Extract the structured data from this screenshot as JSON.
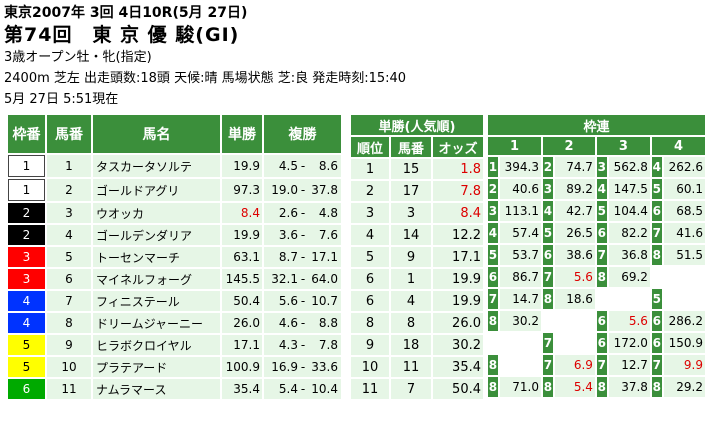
{
  "race_date_line": "東京2007年 3回 4日10R(5月 27日)",
  "race_title": "第74回　東 京 優 駿(GI)",
  "race_condition": "3歳オープン牡・牝(指定)",
  "race_info": "2400m 芝左 出走頭数:18頭 天候:晴 馬場状態 芝:良 発走時刻:15:40",
  "updated_at": "5月 27日 5:51現在",
  "odds_table": {
    "headers": {
      "waku": "枠番",
      "umaban": "馬番",
      "name": "馬名",
      "win": "単勝",
      "place": "複勝"
    },
    "place_sep": "-",
    "rows": [
      {
        "waku": "1",
        "umaban": "1",
        "name": "タスカータソルテ",
        "win": "19.9",
        "place_lo": "4.5",
        "place_hi": "8.6"
      },
      {
        "waku": "1",
        "umaban": "2",
        "name": "ゴールドアグリ",
        "win": "97.3",
        "place_lo": "19.0",
        "place_hi": "37.8"
      },
      {
        "waku": "2",
        "umaban": "3",
        "name": "ウオッカ",
        "win": "8.4",
        "place_lo": "2.6",
        "place_hi": "4.8"
      },
      {
        "waku": "2",
        "umaban": "4",
        "name": "ゴールデンダリア",
        "win": "19.9",
        "place_lo": "3.6",
        "place_hi": "7.6"
      },
      {
        "waku": "3",
        "umaban": "5",
        "name": "トーセンマーチ",
        "win": "63.1",
        "place_lo": "8.7",
        "place_hi": "17.1"
      },
      {
        "waku": "3",
        "umaban": "6",
        "name": "マイネルフォーグ",
        "win": "145.5",
        "place_lo": "32.1",
        "place_hi": "64.0"
      },
      {
        "waku": "4",
        "umaban": "7",
        "name": "フィニステール",
        "win": "50.4",
        "place_lo": "5.6",
        "place_hi": "10.7"
      },
      {
        "waku": "4",
        "umaban": "8",
        "name": "ドリームジャーニー",
        "win": "26.0",
        "place_lo": "4.6",
        "place_hi": "8.8"
      },
      {
        "waku": "5",
        "umaban": "9",
        "name": "ヒラボクロイヤル",
        "win": "17.1",
        "place_lo": "4.3",
        "place_hi": "7.8"
      },
      {
        "waku": "5",
        "umaban": "10",
        "name": "プラテアード",
        "win": "100.9",
        "place_lo": "16.9",
        "place_hi": "33.6"
      },
      {
        "waku": "6",
        "umaban": "11",
        "name": "ナムラマース",
        "win": "35.4",
        "place_lo": "5.4",
        "place_hi": "10.4"
      }
    ]
  },
  "popularity_table": {
    "title": "単勝(人気順)",
    "headers": {
      "rank": "順位",
      "umaban": "馬番",
      "odds": "オッズ"
    },
    "rows": [
      {
        "rank": "1",
        "umaban": "15",
        "odds": "1.8"
      },
      {
        "rank": "2",
        "umaban": "17",
        "odds": "7.8"
      },
      {
        "rank": "3",
        "umaban": "3",
        "odds": "8.4"
      },
      {
        "rank": "4",
        "umaban": "14",
        "odds": "12.2"
      },
      {
        "rank": "5",
        "umaban": "9",
        "odds": "17.1"
      },
      {
        "rank": "6",
        "umaban": "1",
        "odds": "19.9"
      },
      {
        "rank": "6",
        "umaban": "4",
        "odds": "19.9"
      },
      {
        "rank": "8",
        "umaban": "8",
        "odds": "26.0"
      },
      {
        "rank": "9",
        "umaban": "18",
        "odds": "30.2"
      },
      {
        "rank": "10",
        "umaban": "11",
        "odds": "35.4"
      },
      {
        "rank": "11",
        "umaban": "7",
        "odds": "50.4"
      }
    ]
  },
  "wakuren_table": {
    "title": "枠連",
    "headers": [
      "1",
      "2",
      "3",
      "4"
    ],
    "rows": [
      [
        "1",
        "394.3",
        "2",
        "74.7",
        "3",
        "562.8",
        "4",
        "262.6"
      ],
      [
        "2",
        "40.6",
        "3",
        "89.2",
        "4",
        "147.5",
        "5",
        "60.1"
      ],
      [
        "3",
        "113.1",
        "4",
        "42.7",
        "5",
        "104.4",
        "6",
        "68.5"
      ],
      [
        "4",
        "57.4",
        "5",
        "26.5",
        "6",
        "82.2",
        "7",
        "41.6"
      ],
      [
        "5",
        "53.7",
        "6",
        "38.6",
        "7",
        "36.8",
        "8",
        "51.5"
      ],
      [
        "6",
        "86.7",
        "7",
        "5.6",
        "8",
        "69.2",
        "",
        ""
      ],
      [
        "7",
        "14.7",
        "8",
        "18.6",
        "",
        "",
        "5",
        ""
      ],
      [
        "8",
        "30.2",
        "",
        "",
        "6",
        "5.6",
        "6",
        "286.2"
      ],
      [
        "",
        "",
        "7",
        "",
        "6",
        "172.0",
        "6",
        "150.9"
      ],
      [
        "8",
        "",
        "7",
        "6.9",
        "7",
        "12.7",
        "7",
        "9.9"
      ],
      [
        "8",
        "71.0",
        "8",
        "5.4",
        "8",
        "37.8",
        "8",
        "29.2"
      ]
    ]
  },
  "colors": {
    "header_green": "#3b8f3b",
    "cell_light_green": "#e6f6e6",
    "highlight_red": "#dd0000"
  }
}
